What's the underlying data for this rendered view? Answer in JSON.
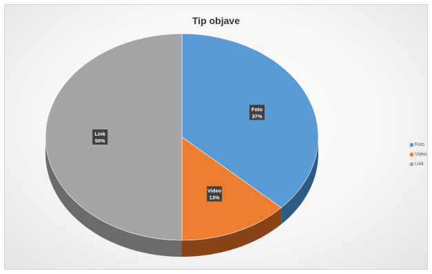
{
  "chart_data": {
    "type": "pie",
    "title": "Tip objave",
    "slices": [
      {
        "label": "Foto",
        "value": 37,
        "value_label": "37%",
        "color": "#5b9bd5",
        "side_color": "#2e5a84"
      },
      {
        "label": "Video",
        "value": 13,
        "value_label": "13%",
        "color": "#ed7d31",
        "side_color": "#8a4317"
      },
      {
        "label": "Link",
        "value": 50,
        "value_label": "50%",
        "color": "#a5a5a5",
        "side_color": "#6b6b6b"
      }
    ],
    "legend": {
      "position": "right",
      "entries": [
        "Foto",
        "Video",
        "Link"
      ]
    },
    "data_labels": "category and percentage",
    "style": "3d"
  }
}
